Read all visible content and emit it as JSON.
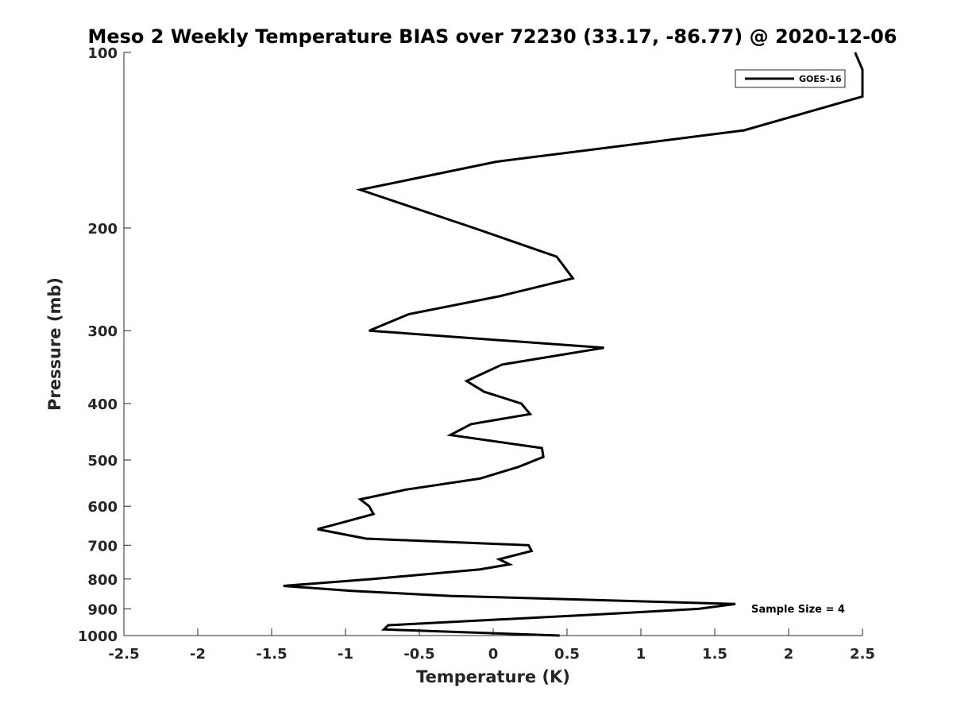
{
  "chart_data": {
    "type": "line",
    "title": "Meso 2 Weekly Temperature BIAS over 72230 (33.17, -86.77) @ 2020-12-06",
    "xlabel": "Temperature (K)",
    "ylabel": "Pressure (mb)",
    "xlim": [
      -2.5,
      2.5
    ],
    "ylim": [
      100,
      1000
    ],
    "yscale": "log",
    "reverse_y": true,
    "grid": false,
    "xticks": [
      -2.5,
      -2,
      -1.5,
      -1,
      -0.5,
      0,
      0.5,
      1,
      1.5,
      2,
      2.5
    ],
    "xtick_labels": [
      "-2.5",
      "-2",
      "-1.5",
      "-1",
      "-0.5",
      "0",
      "0.5",
      "1",
      "1.5",
      "2",
      "2.5"
    ],
    "yticks": [
      100,
      200,
      300,
      400,
      500,
      600,
      700,
      800,
      900,
      1000
    ],
    "ytick_labels": [
      "100",
      "200",
      "300",
      "400",
      "500",
      "600",
      "700",
      "800",
      "900",
      "1000"
    ],
    "legend": {
      "position": "top-right",
      "entries": [
        "GOES-16"
      ]
    },
    "annotation": "Sample Size = 4",
    "series": [
      {
        "name": "GOES-16",
        "color": "#000000",
        "points": [
          {
            "x": 2.45,
            "p": 100
          },
          {
            "x": 2.5,
            "p": 107
          },
          {
            "x": 2.5,
            "p": 119
          },
          {
            "x": 1.7,
            "p": 136
          },
          {
            "x": 0.02,
            "p": 154
          },
          {
            "x": -0.9,
            "p": 172
          },
          {
            "x": -0.13,
            "p": 200
          },
          {
            "x": 0.43,
            "p": 224
          },
          {
            "x": 0.54,
            "p": 244
          },
          {
            "x": 0.04,
            "p": 262
          },
          {
            "x": -0.57,
            "p": 281
          },
          {
            "x": -0.84,
            "p": 300
          },
          {
            "x": 0.75,
            "p": 321
          },
          {
            "x": 0.06,
            "p": 343
          },
          {
            "x": -0.18,
            "p": 366
          },
          {
            "x": -0.06,
            "p": 382
          },
          {
            "x": 0.19,
            "p": 400
          },
          {
            "x": 0.25,
            "p": 417
          },
          {
            "x": -0.15,
            "p": 434
          },
          {
            "x": -0.29,
            "p": 453
          },
          {
            "x": 0.33,
            "p": 477
          },
          {
            "x": 0.34,
            "p": 494
          },
          {
            "x": 0.17,
            "p": 514
          },
          {
            "x": -0.09,
            "p": 538
          },
          {
            "x": -0.59,
            "p": 562
          },
          {
            "x": -0.9,
            "p": 584
          },
          {
            "x": -0.84,
            "p": 600
          },
          {
            "x": -0.81,
            "p": 619
          },
          {
            "x": -1.03,
            "p": 641
          },
          {
            "x": -1.19,
            "p": 657
          },
          {
            "x": -0.86,
            "p": 682
          },
          {
            "x": 0.24,
            "p": 700
          },
          {
            "x": 0.26,
            "p": 716
          },
          {
            "x": 0.04,
            "p": 740
          },
          {
            "x": 0.11,
            "p": 755
          },
          {
            "x": -0.09,
            "p": 770
          },
          {
            "x": -0.82,
            "p": 800
          },
          {
            "x": -1.42,
            "p": 822
          },
          {
            "x": -0.96,
            "p": 838
          },
          {
            "x": -0.29,
            "p": 855
          },
          {
            "x": 1.64,
            "p": 883
          },
          {
            "x": 1.39,
            "p": 900
          },
          {
            "x": 0.85,
            "p": 916
          },
          {
            "x": -0.71,
            "p": 960
          },
          {
            "x": -0.74,
            "p": 976
          },
          {
            "x": 0.45,
            "p": 1000
          }
        ]
      }
    ]
  }
}
